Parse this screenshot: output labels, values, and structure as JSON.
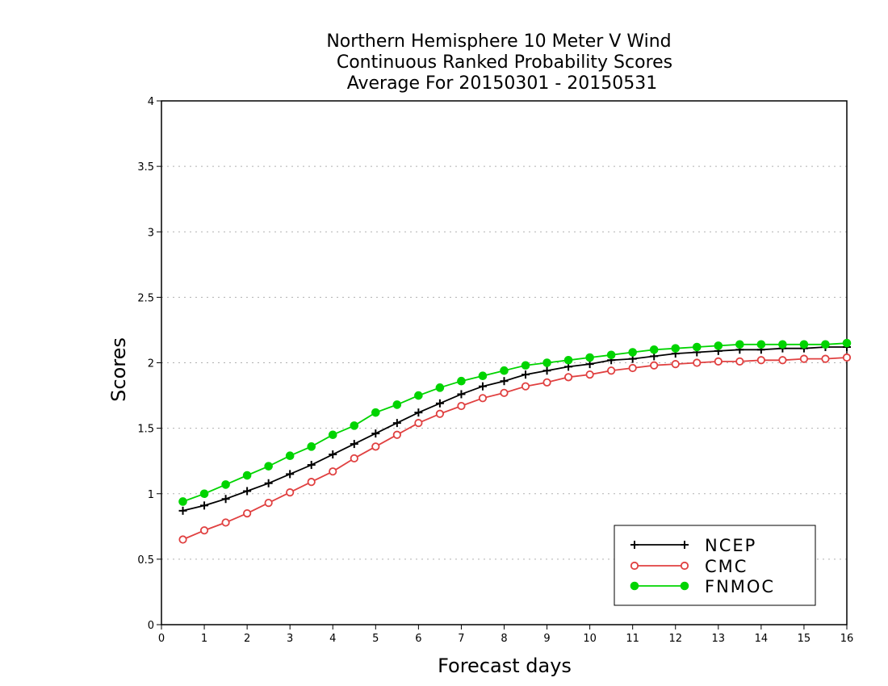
{
  "chart_data": {
    "type": "line",
    "title": [
      "Northern Hemisphere 10 Meter V Wind",
      "Continuous Ranked Probability Scores",
      "Average For 20150301 - 20150531"
    ],
    "xlabel": "Forecast days",
    "ylabel": "Scores",
    "xlim": [
      0,
      16
    ],
    "ylim": [
      0,
      4
    ],
    "xticks": [
      "0",
      "1",
      "2",
      "3",
      "4",
      "5",
      "6",
      "7",
      "8",
      "9",
      "10",
      "11",
      "12",
      "13",
      "14",
      "15",
      "16"
    ],
    "yticks": [
      "0",
      "0.5",
      "1",
      "1.5",
      "2",
      "2.5",
      "3",
      "3.5",
      "4"
    ],
    "grid": true,
    "legend_position": "bottom-right",
    "x": [
      0.5,
      1,
      1.5,
      2,
      2.5,
      3,
      3.5,
      4,
      4.5,
      5,
      5.5,
      6,
      6.5,
      7,
      7.5,
      8,
      8.5,
      9,
      9.5,
      10,
      10.5,
      11,
      11.5,
      12,
      12.5,
      13,
      13.5,
      14,
      14.5,
      15,
      15.5,
      16
    ],
    "series": [
      {
        "name": "NCEP",
        "color": "#000000",
        "marker": "plus",
        "values": [
          0.87,
          0.91,
          0.96,
          1.02,
          1.08,
          1.15,
          1.22,
          1.3,
          1.38,
          1.46,
          1.54,
          1.62,
          1.69,
          1.76,
          1.82,
          1.86,
          1.91,
          1.94,
          1.97,
          1.99,
          2.02,
          2.03,
          2.05,
          2.07,
          2.08,
          2.09,
          2.1,
          2.1,
          2.11,
          2.11,
          2.12,
          2.12
        ]
      },
      {
        "name": "CMC",
        "color": "#e04040",
        "marker": "open-circle",
        "values": [
          0.65,
          0.72,
          0.78,
          0.85,
          0.93,
          1.01,
          1.09,
          1.17,
          1.27,
          1.36,
          1.45,
          1.54,
          1.61,
          1.67,
          1.73,
          1.77,
          1.82,
          1.85,
          1.89,
          1.91,
          1.94,
          1.96,
          1.98,
          1.99,
          2.0,
          2.01,
          2.01,
          2.02,
          2.02,
          2.03,
          2.03,
          2.04
        ]
      },
      {
        "name": "FNMOC",
        "color": "#00d400",
        "marker": "filled-circle",
        "values": [
          0.94,
          1.0,
          1.07,
          1.14,
          1.21,
          1.29,
          1.36,
          1.45,
          1.52,
          1.62,
          1.68,
          1.75,
          1.81,
          1.86,
          1.9,
          1.94,
          1.98,
          2.0,
          2.02,
          2.04,
          2.06,
          2.08,
          2.1,
          2.11,
          2.12,
          2.13,
          2.14,
          2.14,
          2.14,
          2.14,
          2.14,
          2.15
        ]
      }
    ]
  }
}
